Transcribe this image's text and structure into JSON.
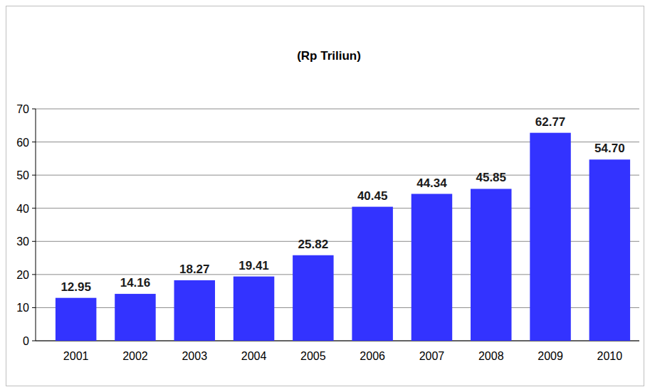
{
  "chart_data": {
    "type": "bar",
    "title": "(Rp Triliun)",
    "categories": [
      "2001",
      "2002",
      "2003",
      "2004",
      "2005",
      "2006",
      "2007",
      "2008",
      "2009",
      "2010"
    ],
    "values": [
      12.95,
      14.16,
      18.27,
      19.41,
      25.82,
      40.45,
      44.34,
      45.85,
      62.77,
      54.7
    ],
    "value_labels": [
      "12.95",
      "14.16",
      "18.27",
      "19.41",
      "25.82",
      "40.45",
      "44.34",
      "45.85",
      "62.77",
      "54.70"
    ],
    "color": "#3333ff",
    "ylim": [
      0,
      70
    ],
    "yticks": [
      0,
      10,
      20,
      30,
      40,
      50,
      60,
      70
    ],
    "grid": true,
    "data_labels": true
  }
}
